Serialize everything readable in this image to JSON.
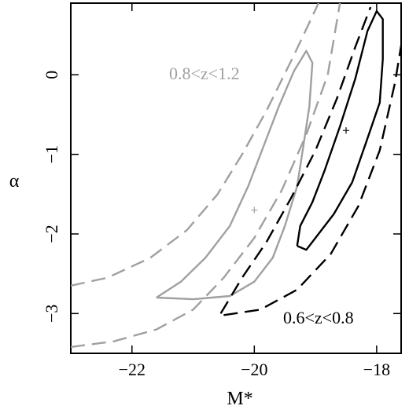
{
  "chart_data": {
    "type": "contour",
    "xlabel": "M*",
    "ylabel": "α",
    "xlim": [
      -23.0,
      -17.6
    ],
    "ylim": [
      -3.5,
      0.9
    ],
    "x_ticks": [
      -22,
      -20,
      -18
    ],
    "x_tick_labels": [
      "−22",
      "−20",
      "−18"
    ],
    "y_ticks": [
      0,
      -1,
      -2,
      -3
    ],
    "y_tick_labels": [
      "0",
      "−1",
      "−2",
      "−3"
    ],
    "grid": false,
    "legend": "none",
    "series": [
      {
        "name": "0.8<z<1.2",
        "color": "#a0a0a0",
        "best_fit": {
          "x": -20.0,
          "y": -1.7
        },
        "contours": [
          {
            "style": "solid",
            "points": [
              [
                -21.6,
                -2.8
              ],
              [
                -21.2,
                -2.6
              ],
              [
                -20.8,
                -2.3
              ],
              [
                -20.4,
                -1.9
              ],
              [
                -20.1,
                -1.4
              ],
              [
                -19.85,
                -0.9
              ],
              [
                -19.6,
                -0.4
              ],
              [
                -19.35,
                0.05
              ],
              [
                -19.15,
                0.3
              ],
              [
                -19.05,
                0.15
              ],
              [
                -19.1,
                -0.4
              ],
              [
                -19.2,
                -0.9
              ],
              [
                -19.3,
                -1.4
              ],
              [
                -19.5,
                -1.9
              ],
              [
                -19.7,
                -2.3
              ],
              [
                -20.0,
                -2.6
              ],
              [
                -20.4,
                -2.78
              ],
              [
                -21.0,
                -2.82
              ],
              [
                -21.6,
                -2.8
              ]
            ]
          },
          {
            "style": "dashed",
            "points": [
              [
                -23.0,
                -2.65
              ],
              [
                -22.4,
                -2.55
              ],
              [
                -21.7,
                -2.3
              ],
              [
                -21.1,
                -1.95
              ],
              [
                -20.6,
                -1.5
              ],
              [
                -20.2,
                -1.0
              ],
              [
                -19.8,
                -0.45
              ],
              [
                -19.35,
                0.25
              ],
              [
                -18.95,
                0.9
              ]
            ]
          },
          {
            "style": "dashed",
            "points": [
              [
                -23.0,
                -3.42
              ],
              [
                -22.3,
                -3.35
              ],
              [
                -21.6,
                -3.2
              ],
              [
                -21.0,
                -2.95
              ],
              [
                -20.5,
                -2.55
              ],
              [
                -20.0,
                -2.05
              ],
              [
                -19.55,
                -1.45
              ],
              [
                -19.15,
                -0.75
              ],
              [
                -18.8,
                0.0
              ],
              [
                -18.6,
                0.9
              ]
            ]
          }
        ]
      },
      {
        "name": "0.6<z<0.8",
        "color": "#000000",
        "best_fit": {
          "x": -18.5,
          "y": -0.7
        },
        "contours": [
          {
            "style": "solid",
            "points": [
              [
                -19.3,
                -2.15
              ],
              [
                -19.25,
                -1.9
              ],
              [
                -19.05,
                -1.6
              ],
              [
                -18.85,
                -1.2
              ],
              [
                -18.6,
                -0.65
              ],
              [
                -18.35,
                -0.05
              ],
              [
                -18.15,
                0.55
              ],
              [
                -18.0,
                0.8
              ],
              [
                -17.9,
                0.7
              ],
              [
                -17.9,
                0.2
              ],
              [
                -17.95,
                -0.35
              ],
              [
                -18.15,
                -0.8
              ],
              [
                -18.4,
                -1.35
              ],
              [
                -18.7,
                -1.75
              ],
              [
                -19.0,
                -2.05
              ],
              [
                -19.15,
                -2.2
              ],
              [
                -19.3,
                -2.15
              ]
            ]
          },
          {
            "style": "dashed",
            "points": [
              [
                -20.55,
                -3.0
              ],
              [
                -20.2,
                -2.55
              ],
              [
                -19.8,
                -2.1
              ],
              [
                -19.4,
                -1.55
              ],
              [
                -19.0,
                -0.95
              ],
              [
                -18.65,
                -0.3
              ],
              [
                -18.35,
                0.35
              ],
              [
                -18.1,
                0.85
              ]
            ]
          },
          {
            "style": "dashed",
            "points": [
              [
                -20.5,
                -3.02
              ],
              [
                -19.9,
                -2.95
              ],
              [
                -19.3,
                -2.7
              ],
              [
                -18.75,
                -2.25
              ],
              [
                -18.3,
                -1.65
              ],
              [
                -17.95,
                -0.95
              ],
              [
                -17.7,
                -0.1
              ],
              [
                -17.55,
                0.6
              ]
            ]
          }
        ]
      }
    ],
    "annotations": [
      "0.8<z<1.2",
      "0.6<z<0.8"
    ]
  }
}
